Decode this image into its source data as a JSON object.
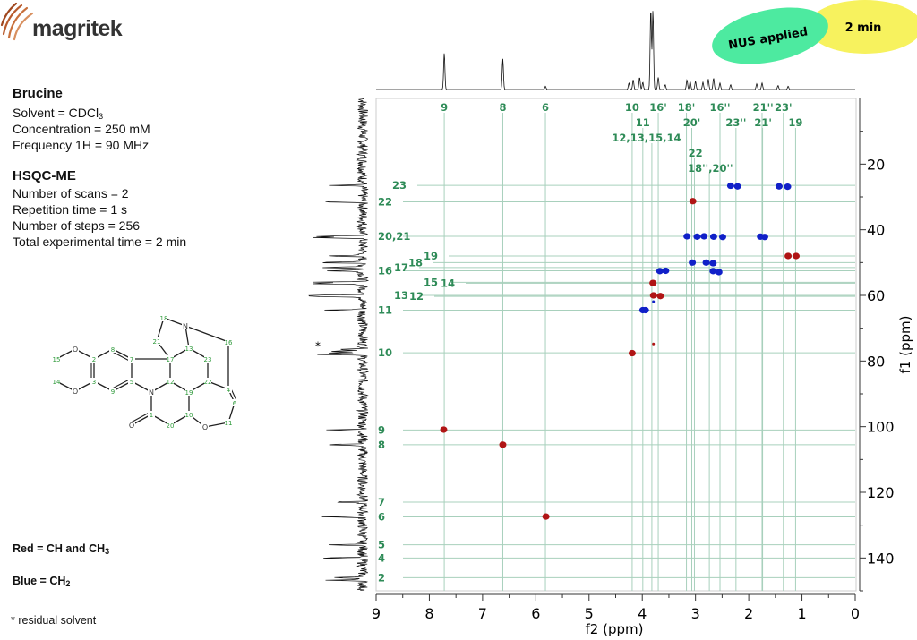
{
  "logo": {
    "text": "magritek"
  },
  "badges": {
    "nus": "NUS applied",
    "time": "2 min",
    "nus_color": "#4deaa0",
    "time_color": "#f7f25e"
  },
  "sample": {
    "title": "Brucine",
    "solvent_label": "Solvent = CDCl",
    "solvent_sub": "3",
    "concentration": "Concentration = 250 mM",
    "frequency": "Frequency 1H = 90 MHz"
  },
  "experiment": {
    "title": "HSQC-ME",
    "scans": "Number of scans = 2",
    "repetition": "Repetition time = 1 s",
    "steps": "Number of steps = 256",
    "total_time": "Total experimental time =  2 min"
  },
  "legend": {
    "red_label": "Red = CH and CH",
    "red_sub": "3",
    "blue_label": "Blue = CH",
    "blue_sub": "2",
    "note": "* residual solvent",
    "red_color": "#b01515",
    "blue_color": "#1020c8"
  },
  "molecule": {
    "atoms": [
      "O",
      "15",
      "2",
      "8",
      "7",
      "5",
      "9",
      "3",
      "O",
      "14",
      "17",
      "12",
      "N",
      "1",
      "O",
      "20",
      "10",
      "19",
      "O",
      "11",
      "6",
      "4",
      "22",
      "23",
      "13",
      "N",
      "18",
      "21",
      "16"
    ]
  },
  "chart_data": {
    "type": "scatter",
    "xlabel": "f2 (ppm)",
    "ylabel": "f1 (ppm)",
    "xlim": [
      9,
      0
    ],
    "ylim": [
      0,
      150
    ],
    "x_ticks": [
      "9",
      "8",
      "7",
      "6",
      "5",
      "4",
      "3",
      "2",
      "1",
      "0"
    ],
    "y_ticks": [
      "20",
      "40",
      "60",
      "80",
      "100",
      "120",
      "140"
    ],
    "grid": false,
    "line_color": "#a8d0bc",
    "label_color": "#2e8b57",
    "f2_assignments": [
      {
        "label": "9",
        "f2": 7.72
      },
      {
        "label": "8",
        "f2": 6.62
      },
      {
        "label": "6",
        "f2": 5.82
      },
      {
        "label": "10",
        "f2": 4.19
      },
      {
        "label": "11",
        "f2": 3.99
      },
      {
        "label": "12,13,15,14",
        "f2": 3.82
      },
      {
        "label": "16'",
        "f2": 3.7
      },
      {
        "label": "18'",
        "f2": 3.17
      },
      {
        "label": "20'",
        "f2": 3.07
      },
      {
        "label": "22",
        "f2": 3.02
      },
      {
        "label": "18'',20''",
        "f2": 2.74
      },
      {
        "label": "16''",
        "f2": 2.54
      },
      {
        "label": "23''",
        "f2": 2.24
      },
      {
        "label": "21''",
        "f2": 1.75
      },
      {
        "label": "21'",
        "f2": 1.74
      },
      {
        "label": "23'",
        "f2": 1.35
      },
      {
        "label": "19",
        "f2": 1.12
      }
    ],
    "f1_assignments": [
      {
        "label": "23",
        "f1": 26.5
      },
      {
        "label": "22",
        "f1": 31.5
      },
      {
        "label": "20,21",
        "f1": 42.0
      },
      {
        "label": "19",
        "f1": 48.0
      },
      {
        "label": "18",
        "f1": 50.0
      },
      {
        "label": "17",
        "f1": 51.5
      },
      {
        "label": "16",
        "f1": 52.5
      },
      {
        "label": "15",
        "f1": 56.0
      },
      {
        "label": "14",
        "f1": 56.3
      },
      {
        "label": "13",
        "f1": 60.0
      },
      {
        "label": "12",
        "f1": 60.3
      },
      {
        "label": "11",
        "f1": 64.5
      },
      {
        "label": "10",
        "f1": 77.5
      },
      {
        "label": "9",
        "f1": 101.0
      },
      {
        "label": "8",
        "f1": 105.5
      },
      {
        "label": "7",
        "f1": 123.0
      },
      {
        "label": "6",
        "f1": 127.5
      },
      {
        "label": "5",
        "f1": 136.0
      },
      {
        "label": "4",
        "f1": 140.0
      },
      {
        "label": "2",
        "f1": 146.0
      }
    ],
    "series": [
      {
        "name": "Red = CH and CH3",
        "color": "#b01515",
        "points": [
          {
            "f2": 7.73,
            "f1": 100.9
          },
          {
            "f2": 6.62,
            "f1": 105.5
          },
          {
            "f2": 5.81,
            "f1": 127.4
          },
          {
            "f2": 4.19,
            "f1": 77.6
          },
          {
            "f2": 3.8,
            "f1": 56.2
          },
          {
            "f2": 3.79,
            "f1": 60.0
          },
          {
            "f2": 3.66,
            "f1": 60.2
          },
          {
            "f2": 3.79,
            "f1": 74.8
          },
          {
            "f2": 3.05,
            "f1": 31.3
          },
          {
            "f2": 1.26,
            "f1": 48.0
          },
          {
            "f2": 1.11,
            "f1": 48.0
          }
        ]
      },
      {
        "name": "Blue = CH2",
        "color": "#1020c8",
        "points": [
          {
            "f2": 2.34,
            "f1": 26.6
          },
          {
            "f2": 2.21,
            "f1": 26.8
          },
          {
            "f2": 1.43,
            "f1": 26.8
          },
          {
            "f2": 1.27,
            "f1": 26.9
          },
          {
            "f2": 3.16,
            "f1": 42.0
          },
          {
            "f2": 2.97,
            "f1": 42.1
          },
          {
            "f2": 2.84,
            "f1": 42.0
          },
          {
            "f2": 2.66,
            "f1": 42.1
          },
          {
            "f2": 2.49,
            "f1": 42.2
          },
          {
            "f2": 1.78,
            "f1": 42.1
          },
          {
            "f2": 1.7,
            "f1": 42.2
          },
          {
            "f2": 3.06,
            "f1": 50.0
          },
          {
            "f2": 2.8,
            "f1": 50.0
          },
          {
            "f2": 2.67,
            "f1": 50.2
          },
          {
            "f2": 3.67,
            "f1": 52.6
          },
          {
            "f2": 3.56,
            "f1": 52.5
          },
          {
            "f2": 2.67,
            "f1": 52.6
          },
          {
            "f2": 2.56,
            "f1": 52.9
          },
          {
            "f2": 3.99,
            "f1": 64.5
          },
          {
            "f2": 3.94,
            "f1": 64.5
          },
          {
            "f2": 3.79,
            "f1": 61.9
          }
        ]
      }
    ],
    "projection_1h": [
      {
        "f2": 7.72,
        "intensity": 0.45
      },
      {
        "f2": 6.62,
        "intensity": 0.38
      },
      {
        "f2": 5.82,
        "intensity": 0.04
      },
      {
        "f2": 4.25,
        "intensity": 0.08
      },
      {
        "f2": 4.17,
        "intensity": 0.12
      },
      {
        "f2": 4.05,
        "intensity": 0.15
      },
      {
        "f2": 3.99,
        "intensity": 0.09
      },
      {
        "f2": 3.84,
        "intensity": 1.0
      },
      {
        "f2": 3.8,
        "intensity": 0.98
      },
      {
        "f2": 3.7,
        "intensity": 0.15
      },
      {
        "f2": 3.57,
        "intensity": 0.06
      },
      {
        "f2": 3.16,
        "intensity": 0.12
      },
      {
        "f2": 3.1,
        "intensity": 0.1
      },
      {
        "f2": 3.0,
        "intensity": 0.1
      },
      {
        "f2": 2.86,
        "intensity": 0.09
      },
      {
        "f2": 2.76,
        "intensity": 0.13
      },
      {
        "f2": 2.66,
        "intensity": 0.14
      },
      {
        "f2": 2.54,
        "intensity": 0.08
      },
      {
        "f2": 2.34,
        "intensity": 0.06
      },
      {
        "f2": 1.85,
        "intensity": 0.07
      },
      {
        "f2": 1.75,
        "intensity": 0.08
      },
      {
        "f2": 1.45,
        "intensity": 0.05
      },
      {
        "f2": 1.26,
        "intensity": 0.04
      }
    ],
    "projection_13c": [
      {
        "f1": 26.5,
        "intensity": 0.35
      },
      {
        "f1": 31.5,
        "intensity": 0.48
      },
      {
        "f1": 42.0,
        "intensity": 0.58
      },
      {
        "f1": 42.4,
        "intensity": 0.55
      },
      {
        "f1": 48.0,
        "intensity": 0.5
      },
      {
        "f1": 50.0,
        "intensity": 0.54
      },
      {
        "f1": 51.5,
        "intensity": 0.48
      },
      {
        "f1": 52.5,
        "intensity": 0.45
      },
      {
        "f1": 56.0,
        "intensity": 0.62
      },
      {
        "f1": 56.4,
        "intensity": 0.62
      },
      {
        "f1": 60.0,
        "intensity": 0.6
      },
      {
        "f1": 60.3,
        "intensity": 0.58
      },
      {
        "f1": 64.5,
        "intensity": 0.45
      },
      {
        "f1": 76.5,
        "intensity": 0.25
      },
      {
        "f1": 77.0,
        "intensity": 0.38
      },
      {
        "f1": 77.5,
        "intensity": 0.4
      },
      {
        "f1": 78.0,
        "intensity": 0.6
      },
      {
        "f1": 101.0,
        "intensity": 0.45
      },
      {
        "f1": 105.5,
        "intensity": 0.48
      },
      {
        "f1": 123.0,
        "intensity": 0.35
      },
      {
        "f1": 127.5,
        "intensity": 0.45
      },
      {
        "f1": 136.0,
        "intensity": 0.35
      },
      {
        "f1": 140.0,
        "intensity": 0.56
      },
      {
        "f1": 146.0,
        "intensity": 0.4
      },
      {
        "f1": 146.8,
        "intensity": 0.38
      }
    ],
    "annotations": [
      {
        "text": "*",
        "f1": 77.0
      }
    ]
  }
}
